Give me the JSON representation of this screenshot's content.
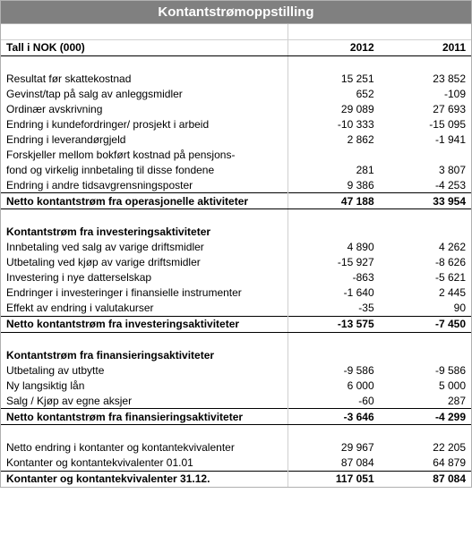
{
  "title": "Kontantstrømoppstilling",
  "unit_label": "Tall i NOK (000)",
  "col_headers": [
    "2012",
    "2011"
  ],
  "sections": [
    {
      "rows": [
        {
          "label": "Resultat før skattekostnad",
          "values": [
            "15 251",
            "23 852"
          ]
        },
        {
          "label": "Gevinst/tap på salg av anleggsmidler",
          "values": [
            "652",
            "-109"
          ]
        },
        {
          "label": "Ordinær avskrivning",
          "values": [
            "29 089",
            "27 693"
          ]
        },
        {
          "label": "Endring i kundefordringer/ prosjekt i arbeid",
          "values": [
            "-10 333",
            "-15 095"
          ]
        },
        {
          "label": "Endring i leverandørgjeld",
          "values": [
            "2 862",
            "-1 941"
          ]
        },
        {
          "label": "Forskjeller mellom bokført kostnad på pensjons-",
          "values": [
            "",
            ""
          ]
        },
        {
          "label": "fond og virkelig innbetaling til disse fondene",
          "values": [
            "281",
            "3 807"
          ]
        },
        {
          "label": "Endring i andre tidsavgrensningsposter",
          "values": [
            "9 386",
            "-4 253"
          ]
        }
      ],
      "total": {
        "label": "Netto kontantstrøm fra operasjonelle aktiviteter",
        "values": [
          "47 188",
          "33 954"
        ]
      }
    },
    {
      "heading": "Kontantstrøm fra investeringsaktiviteter",
      "rows": [
        {
          "label": "Innbetaling ved salg av varige driftsmidler",
          "values": [
            "4 890",
            "4 262"
          ]
        },
        {
          "label": "Utbetaling ved kjøp av varige driftsmidler",
          "values": [
            "-15 927",
            "-8 626"
          ]
        },
        {
          "label": "Investering i nye datterselskap",
          "values": [
            "-863",
            "-5 621"
          ]
        },
        {
          "label": "Endringer i investeringer i finansielle instrumenter",
          "values": [
            "-1 640",
            "2 445"
          ]
        },
        {
          "label": "Effekt av endring i valutakurser",
          "values": [
            "-35",
            "90"
          ]
        }
      ],
      "total": {
        "label": "Netto kontantstrøm fra investeringsaktiviteter",
        "values": [
          "-13 575",
          "-7 450"
        ]
      }
    },
    {
      "heading": "Kontantstrøm fra finansieringsaktiviteter",
      "rows": [
        {
          "label": "Utbetaling av utbytte",
          "values": [
            "-9 586",
            "-9 586"
          ]
        },
        {
          "label": "Ny langsiktig lån",
          "values": [
            "6 000",
            "5 000"
          ]
        },
        {
          "label": "Salg / Kjøp av egne aksjer",
          "values": [
            "-60",
            "287"
          ]
        }
      ],
      "total": {
        "label": "Netto kontantstrøm fra finansieringsaktiviteter",
        "values": [
          "-3 646",
          "-4 299"
        ]
      }
    }
  ],
  "summary": [
    {
      "label": "Netto endring i kontanter og kontantekvivalenter",
      "values": [
        "29 967",
        "22 205"
      ],
      "bold": false,
      "line_top": false
    },
    {
      "label": "Kontanter og kontantekvivalenter 01.01",
      "values": [
        "87 084",
        "64 879"
      ],
      "bold": false,
      "line_top": false
    },
    {
      "label": "Kontanter og kontantekvivalenter 31.12.",
      "values": [
        "117 051",
        "87 084"
      ],
      "bold": true,
      "line_top": true
    }
  ]
}
